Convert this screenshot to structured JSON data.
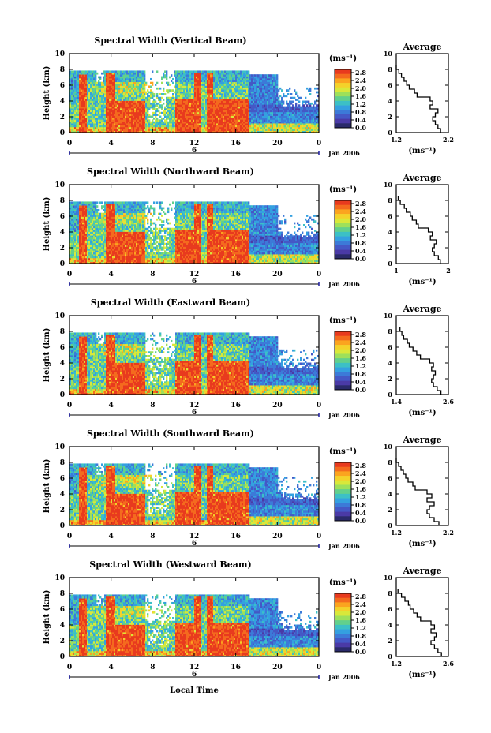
{
  "figure": {
    "xlabel": "Local Time",
    "date_label": "Jan 2006",
    "day_label": "6",
    "colorbar_unit": "(ms⁻¹)",
    "colorbar_ticks": [
      "2.8",
      "2.4",
      "2.0",
      "1.6",
      "1.2",
      "0.8",
      "0.4",
      "0.0"
    ],
    "colorbar_colors": [
      "#e83a1e",
      "#f46a1e",
      "#fba41f",
      "#f4d22a",
      "#d9e83a",
      "#9ee05a",
      "#62d08c",
      "#3cc0c6",
      "#34a0e0",
      "#3c7ad8",
      "#4458c6",
      "#4a3aa6",
      "#2a2a6a"
    ],
    "side_title": "Average",
    "side_xlabel": "(ms⁻¹)"
  },
  "chart_data": [
    {
      "type": "heatmap",
      "title": "Spectral Width (Vertical Beam)",
      "ylabel": "Height (km)",
      "xlim": [
        0,
        24
      ],
      "ylim": [
        0,
        10
      ],
      "xticks": [
        "0",
        "4",
        "8",
        "12",
        "16",
        "20",
        "0"
      ],
      "yticks": [
        "0",
        "2",
        "4",
        "6",
        "8",
        "10"
      ],
      "clim": [
        0,
        3.0
      ],
      "profile": {
        "xticks": [
          "1.2",
          "2.2"
        ],
        "xlim": [
          1.2,
          2.2
        ],
        "yticks": [
          "0",
          "2",
          "4",
          "6",
          "8",
          "10"
        ],
        "height": [
          0,
          0.5,
          1,
          1.5,
          2,
          2.5,
          3,
          3.5,
          4,
          4.5,
          5,
          5.5,
          6,
          6.5,
          7,
          7.5,
          8
        ],
        "value": [
          2.05,
          2.0,
          1.95,
          1.9,
          1.95,
          2.0,
          1.85,
          1.9,
          1.85,
          1.6,
          1.55,
          1.45,
          1.4,
          1.35,
          1.3,
          1.25,
          1.2
        ]
      }
    },
    {
      "type": "heatmap",
      "title": "Spectral Width (Northward Beam)",
      "ylabel": "Height (km)",
      "xlim": [
        0,
        24
      ],
      "ylim": [
        0,
        10
      ],
      "xticks": [
        "0",
        "4",
        "8",
        "12",
        "16",
        "20",
        "0"
      ],
      "yticks": [
        "0",
        "2",
        "4",
        "6",
        "8",
        "10"
      ],
      "clim": [
        0,
        3.0
      ],
      "profile": {
        "xticks": [
          "1",
          "2"
        ],
        "xlim": [
          1.0,
          2.3
        ],
        "yticks": [
          "0",
          "2",
          "4",
          "6",
          "8",
          "10"
        ],
        "height": [
          0,
          0.5,
          1,
          1.5,
          2,
          2.5,
          3,
          3.5,
          4,
          4.5,
          5,
          5.5,
          6,
          6.5,
          7,
          7.5,
          8
        ],
        "value": [
          2.1,
          2.05,
          1.95,
          1.9,
          1.95,
          2.0,
          1.85,
          1.9,
          1.8,
          1.55,
          1.5,
          1.4,
          1.35,
          1.25,
          1.2,
          1.1,
          1.05
        ]
      }
    },
    {
      "type": "heatmap",
      "title": "Spectral Width (Eastward Beam)",
      "ylabel": "Height (km)",
      "xlim": [
        0,
        24
      ],
      "ylim": [
        0,
        10
      ],
      "xticks": [
        "0",
        "4",
        "8",
        "12",
        "16",
        "20",
        "0"
      ],
      "yticks": [
        "0",
        "2",
        "4",
        "6",
        "8",
        "10"
      ],
      "clim": [
        0,
        3.0
      ],
      "profile": {
        "xticks": [
          "1.4",
          "2.6"
        ],
        "xlim": [
          1.3,
          2.7
        ],
        "yticks": [
          "0",
          "2",
          "4",
          "6",
          "8",
          "10"
        ],
        "height": [
          0,
          0.5,
          1,
          1.5,
          2,
          2.5,
          3,
          3.5,
          4,
          4.5,
          5,
          5.5,
          6,
          6.5,
          7,
          7.5,
          8
        ],
        "value": [
          2.5,
          2.4,
          2.3,
          2.25,
          2.3,
          2.35,
          2.25,
          2.3,
          2.2,
          1.95,
          1.85,
          1.75,
          1.65,
          1.6,
          1.5,
          1.45,
          1.4
        ]
      }
    },
    {
      "type": "heatmap",
      "title": "Spectral Width (Southward Beam)",
      "ylabel": "Height (km)",
      "xlim": [
        0,
        24
      ],
      "ylim": [
        0,
        10
      ],
      "xticks": [
        "0",
        "4",
        "8",
        "12",
        "16",
        "20",
        "0"
      ],
      "yticks": [
        "0",
        "2",
        "4",
        "6",
        "8",
        "10"
      ],
      "clim": [
        0,
        3.0
      ],
      "profile": {
        "xticks": [
          "1.2",
          "2.2"
        ],
        "xlim": [
          1.2,
          2.3
        ],
        "yticks": [
          "0",
          "2",
          "4",
          "6",
          "8",
          "10"
        ],
        "height": [
          0,
          0.5,
          1,
          1.5,
          2,
          2.5,
          3,
          3.5,
          4,
          4.5,
          5,
          5.5,
          6,
          6.5,
          7,
          7.5,
          8
        ],
        "value": [
          2.1,
          2.0,
          1.9,
          1.85,
          1.9,
          2.0,
          1.85,
          1.95,
          1.85,
          1.6,
          1.55,
          1.45,
          1.4,
          1.35,
          1.3,
          1.25,
          1.2
        ]
      }
    },
    {
      "type": "heatmap",
      "title": "Spectral Width (Westward Beam)",
      "ylabel": "Height (km)",
      "xlabel": "Local Time",
      "xlim": [
        0,
        24
      ],
      "ylim": [
        0,
        10
      ],
      "xticks": [
        "0",
        "4",
        "8",
        "12",
        "16",
        "20",
        "0"
      ],
      "yticks": [
        "0",
        "2",
        "4",
        "6",
        "8",
        "10"
      ],
      "clim": [
        0,
        3.0
      ],
      "profile": {
        "xticks": [
          "1.2",
          "2.6"
        ],
        "xlim": [
          1.2,
          2.7
        ],
        "yticks": [
          "0",
          "2",
          "4",
          "6",
          "8",
          "10"
        ],
        "height": [
          0,
          0.5,
          1,
          1.5,
          2,
          2.5,
          3,
          3.5,
          4,
          4.5,
          5,
          5.5,
          6,
          6.5,
          7,
          7.5,
          8
        ],
        "value": [
          2.5,
          2.4,
          2.3,
          2.2,
          2.3,
          2.35,
          2.2,
          2.3,
          2.2,
          1.9,
          1.8,
          1.7,
          1.6,
          1.55,
          1.45,
          1.35,
          1.25
        ]
      }
    }
  ]
}
